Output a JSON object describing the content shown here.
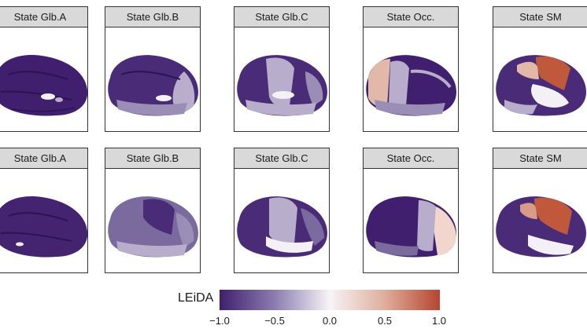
{
  "panels": [
    {
      "label": "State Glb.A"
    },
    {
      "label": "State Glb.B"
    },
    {
      "label": "State Glb.C"
    },
    {
      "label": "State Occ."
    },
    {
      "label": "State SM"
    }
  ],
  "colorbar": {
    "label": "LEiDA",
    "ticks": [
      "−1.0",
      "−0.5",
      "0.0",
      "0.5",
      "1.0"
    ],
    "range": [
      -1.0,
      1.0
    ],
    "colors": {
      "low": "#3f1f6e",
      "mid": "#f7f4f8",
      "high": "#b5452f"
    }
  },
  "colors": {
    "dark_purple": "#3f1f6e",
    "mid_purple": "#7a6a9e",
    "light_purple": "#b8aecb",
    "white": "#f4f1f6",
    "light_red": "#e2b8a8",
    "red": "#c0583c"
  }
}
